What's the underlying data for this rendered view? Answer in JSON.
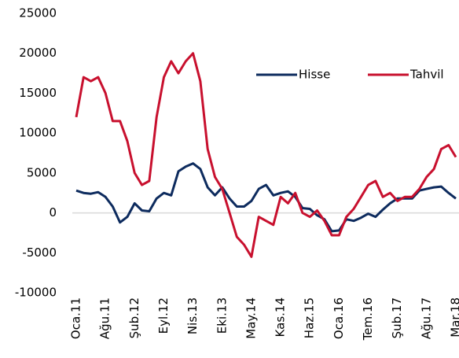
{
  "chart_data": {
    "type": "line",
    "categories": [
      "Oca.11",
      null,
      null,
      null,
      "Ağu.11",
      null,
      null,
      null,
      "Şub.12",
      null,
      null,
      null,
      "Eyl.12",
      null,
      null,
      null,
      "Nis.13",
      null,
      null,
      null,
      "Eki.13",
      null,
      null,
      null,
      "May.14",
      null,
      null,
      null,
      "Kas.14",
      null,
      null,
      null,
      "Haz.15",
      null,
      null,
      null,
      "Oca.16",
      null,
      null,
      null,
      "Tem.16",
      null,
      null,
      null,
      "Şub.17",
      null,
      null,
      null,
      "Ağu.17",
      null,
      null,
      null,
      "Mar.18"
    ],
    "series": [
      {
        "name": "Hisse",
        "color": "#0d2b5e",
        "values": [
          2800,
          2500,
          2400,
          2600,
          2000,
          800,
          -1200,
          -500,
          1200,
          300,
          200,
          1800,
          2500,
          2200,
          5200,
          5800,
          6200,
          5500,
          3200,
          2200,
          3200,
          1800,
          800,
          800,
          1500,
          3000,
          3500,
          2200,
          2500,
          2700,
          2000,
          600,
          500,
          -300,
          -800,
          -2300,
          -2200,
          -800,
          -1000,
          -600,
          -100,
          -500,
          400,
          1200,
          1800,
          1800,
          1800,
          2800,
          3000,
          3200,
          3300,
          2500,
          1800
        ]
      },
      {
        "name": "Tahvil",
        "color": "#c8102e",
        "values": [
          12000,
          17000,
          16500,
          17000,
          15000,
          11500,
          11500,
          9000,
          5000,
          3500,
          4000,
          12000,
          17000,
          19000,
          17500,
          19000,
          20000,
          16500,
          8000,
          4500,
          3000,
          0,
          -3000,
          -4000,
          -5500,
          -500,
          -1000,
          -1500,
          2000,
          1200,
          2500,
          0,
          -500,
          300,
          -1000,
          -2800,
          -2800,
          -500,
          500,
          2000,
          3500,
          4000,
          2000,
          2500,
          1500,
          2000,
          2000,
          3000,
          4500,
          5500,
          8000,
          8500,
          7000
        ]
      }
    ],
    "ylim": [
      -10000,
      25000
    ],
    "yticks": [
      -10000,
      -5000,
      0,
      5000,
      10000,
      15000,
      20000,
      25000
    ],
    "legend": "top-right"
  }
}
